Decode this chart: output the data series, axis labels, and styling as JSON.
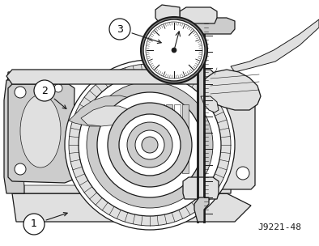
{
  "fig_width": 3.94,
  "fig_height": 3.04,
  "dpi": 100,
  "bg_color": "#ffffff",
  "line_color": "#1a1a1a",
  "dark_gray": "#888888",
  "med_gray": "#aaaaaa",
  "light_gray": "#cccccc",
  "very_light_gray": "#e0e0e0",
  "hatching_gray": "#b0b0b0",
  "ref_number": "J9221-48",
  "ref_fontsize": 8,
  "callout_fontsize": 9
}
